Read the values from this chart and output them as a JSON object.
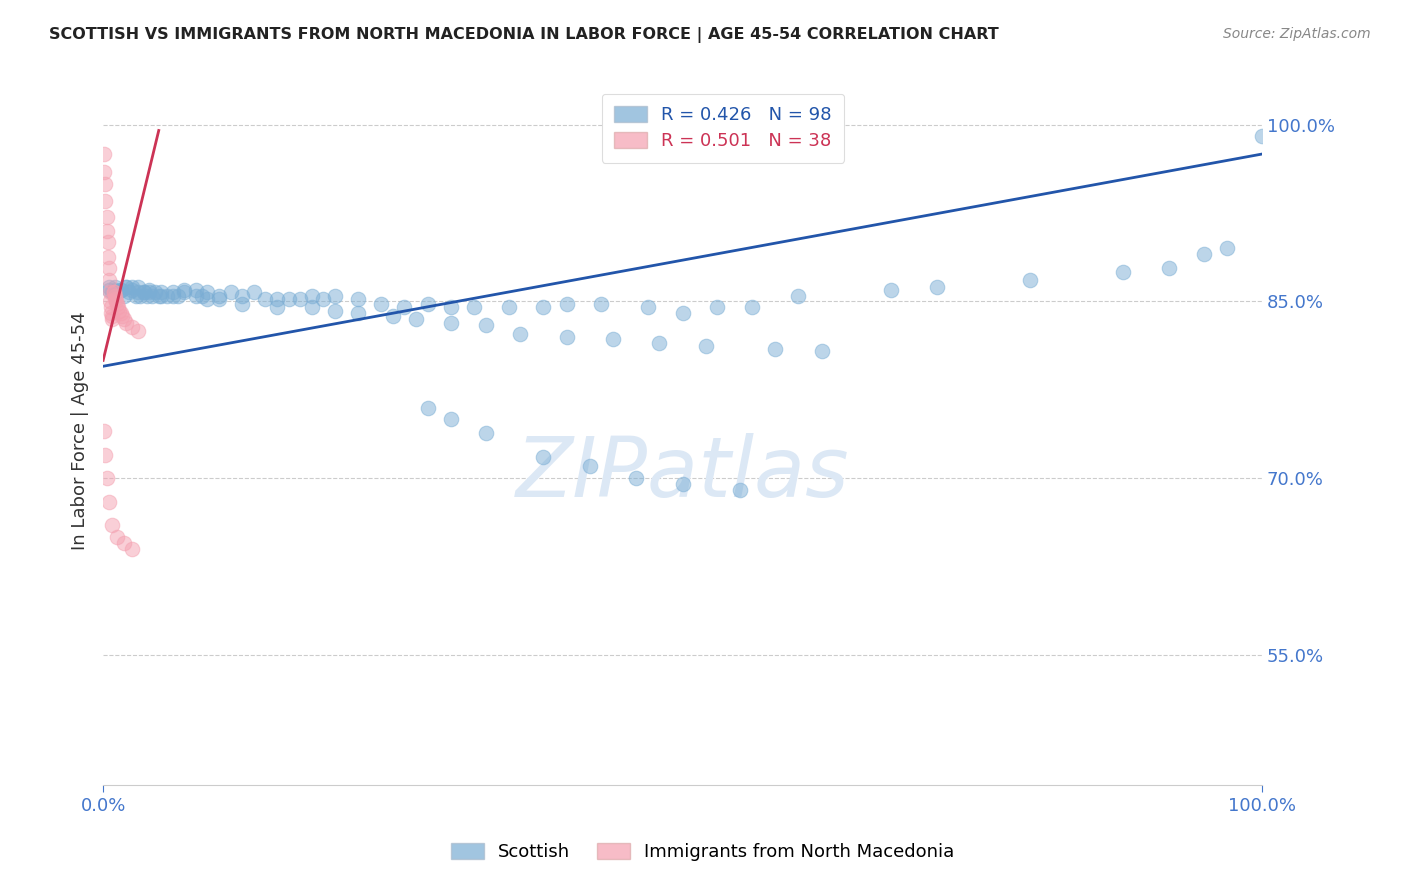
{
  "title": "SCOTTISH VS IMMIGRANTS FROM NORTH MACEDONIA IN LABOR FORCE | AGE 45-54 CORRELATION CHART",
  "source": "Source: ZipAtlas.com",
  "ylabel": "In Labor Force | Age 45-54",
  "watermark": "ZIPatlas",
  "xlim": [
    0.0,
    1.0
  ],
  "ylim": [
    0.44,
    1.04
  ],
  "yticks": [
    0.55,
    0.7,
    0.85,
    1.0
  ],
  "ytick_labels": [
    "55.0%",
    "70.0%",
    "85.0%",
    "100.0%"
  ],
  "legend_blue_r": "R = 0.426",
  "legend_blue_n": "N = 98",
  "legend_pink_r": "R = 0.501",
  "legend_pink_n": "N = 38",
  "blue_color": "#7aadd4",
  "pink_color": "#f4a0b0",
  "blue_line_color": "#2255aa",
  "pink_line_color": "#cc3355",
  "title_color": "#222222",
  "axis_label_color": "#333333",
  "tick_color": "#4477cc",
  "grid_color": "#cccccc",
  "watermark_color": "#dce8f5",
  "blue_scatter_x": [
    0.005,
    0.008,
    0.01,
    0.012,
    0.015,
    0.018,
    0.02,
    0.022,
    0.025,
    0.028,
    0.03,
    0.032,
    0.035,
    0.038,
    0.04,
    0.042,
    0.045,
    0.048,
    0.05,
    0.055,
    0.06,
    0.065,
    0.07,
    0.08,
    0.085,
    0.09,
    0.1,
    0.11,
    0.12,
    0.13,
    0.14,
    0.15,
    0.16,
    0.17,
    0.18,
    0.19,
    0.2,
    0.22,
    0.24,
    0.26,
    0.28,
    0.3,
    0.32,
    0.35,
    0.38,
    0.4,
    0.43,
    0.47,
    0.5,
    0.53,
    0.56,
    0.6,
    0.68,
    0.72,
    0.8,
    0.88,
    0.92,
    0.95,
    0.97,
    1.0,
    0.005,
    0.01,
    0.015,
    0.02,
    0.025,
    0.03,
    0.035,
    0.04,
    0.05,
    0.06,
    0.07,
    0.08,
    0.09,
    0.1,
    0.12,
    0.15,
    0.18,
    0.2,
    0.22,
    0.25,
    0.27,
    0.3,
    0.33,
    0.36,
    0.4,
    0.44,
    0.48,
    0.52,
    0.58,
    0.62,
    0.28,
    0.3,
    0.33,
    0.38,
    0.42,
    0.46,
    0.5,
    0.55
  ],
  "blue_scatter_y": [
    0.86,
    0.858,
    0.862,
    0.858,
    0.86,
    0.855,
    0.862,
    0.858,
    0.86,
    0.855,
    0.858,
    0.855,
    0.858,
    0.855,
    0.858,
    0.855,
    0.858,
    0.855,
    0.858,
    0.855,
    0.855,
    0.855,
    0.86,
    0.86,
    0.855,
    0.858,
    0.855,
    0.858,
    0.855,
    0.858,
    0.852,
    0.852,
    0.852,
    0.852,
    0.855,
    0.852,
    0.855,
    0.852,
    0.848,
    0.845,
    0.848,
    0.845,
    0.845,
    0.845,
    0.845,
    0.848,
    0.848,
    0.845,
    0.84,
    0.845,
    0.845,
    0.855,
    0.86,
    0.862,
    0.868,
    0.875,
    0.878,
    0.89,
    0.895,
    0.99,
    0.862,
    0.86,
    0.86,
    0.862,
    0.862,
    0.862,
    0.858,
    0.86,
    0.855,
    0.858,
    0.858,
    0.855,
    0.852,
    0.852,
    0.848,
    0.845,
    0.845,
    0.842,
    0.84,
    0.838,
    0.835,
    0.832,
    0.83,
    0.822,
    0.82,
    0.818,
    0.815,
    0.812,
    0.81,
    0.808,
    0.76,
    0.75,
    0.738,
    0.718,
    0.71,
    0.7,
    0.695,
    0.69
  ],
  "pink_scatter_x": [
    0.001,
    0.001,
    0.002,
    0.002,
    0.003,
    0.003,
    0.004,
    0.004,
    0.005,
    0.005,
    0.006,
    0.006,
    0.007,
    0.007,
    0.008,
    0.008,
    0.009,
    0.009,
    0.01,
    0.01,
    0.011,
    0.012,
    0.013,
    0.014,
    0.015,
    0.016,
    0.018,
    0.02,
    0.025,
    0.03,
    0.001,
    0.002,
    0.003,
    0.005,
    0.008,
    0.012,
    0.018,
    0.025
  ],
  "pink_scatter_y": [
    0.975,
    0.96,
    0.95,
    0.935,
    0.922,
    0.91,
    0.9,
    0.888,
    0.878,
    0.868,
    0.858,
    0.85,
    0.845,
    0.84,
    0.838,
    0.835,
    0.858,
    0.858,
    0.855,
    0.852,
    0.85,
    0.848,
    0.845,
    0.842,
    0.84,
    0.838,
    0.835,
    0.832,
    0.828,
    0.825,
    0.74,
    0.72,
    0.7,
    0.68,
    0.66,
    0.65,
    0.645,
    0.64
  ],
  "blue_trend_x": [
    0.0,
    1.0
  ],
  "blue_trend_y": [
    0.795,
    0.975
  ],
  "pink_trend_x": [
    0.0,
    0.048
  ],
  "pink_trend_y": [
    0.8,
    0.995
  ]
}
